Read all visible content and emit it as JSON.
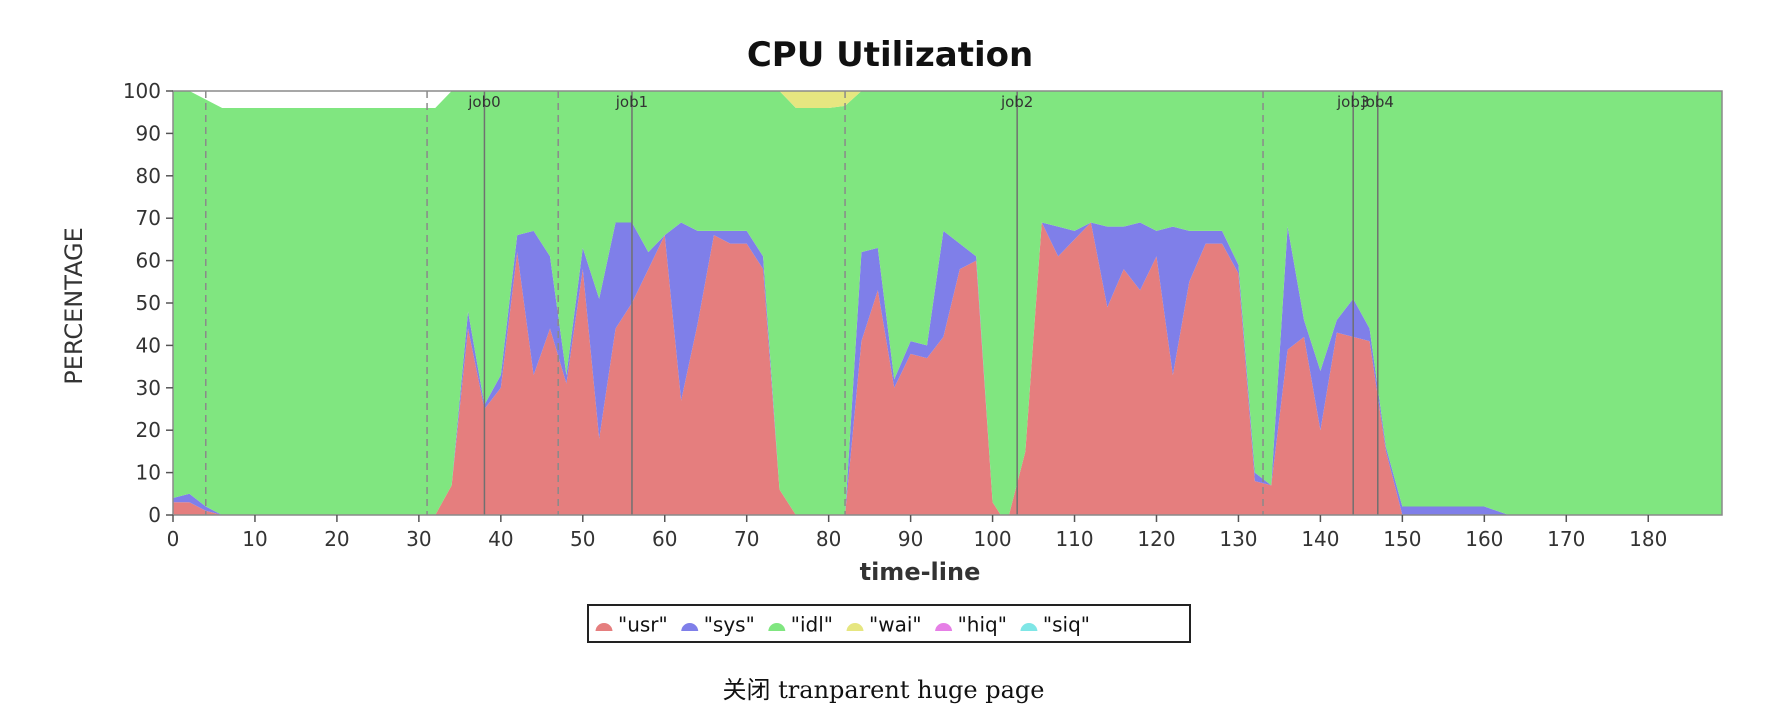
{
  "chart_data": {
    "type": "area",
    "title": "CPU Utilization",
    "xlabel": "time-line",
    "ylabel": "PERCENTAGE",
    "xlim": [
      0,
      189
    ],
    "ylim": [
      0,
      100
    ],
    "x_ticks": [
      0,
      10,
      20,
      30,
      40,
      50,
      60,
      70,
      80,
      90,
      100,
      110,
      120,
      130,
      140,
      150,
      160,
      170,
      180
    ],
    "y_ticks": [
      0,
      10,
      20,
      30,
      40,
      50,
      60,
      70,
      80,
      90,
      100
    ],
    "stacked": true,
    "legend_position": "bottom-center",
    "series": [
      {
        "name": "\"usr\"",
        "color": "#e57e7e",
        "points": [
          [
            0,
            3
          ],
          [
            2,
            3
          ],
          [
            4,
            1
          ],
          [
            6,
            0
          ],
          [
            32,
            0
          ],
          [
            34,
            7
          ],
          [
            36,
            44
          ],
          [
            38,
            25
          ],
          [
            40,
            30
          ],
          [
            42,
            62
          ],
          [
            44,
            33
          ],
          [
            46,
            44
          ],
          [
            48,
            31
          ],
          [
            50,
            58
          ],
          [
            52,
            18
          ],
          [
            54,
            44
          ],
          [
            56,
            50
          ],
          [
            58,
            58
          ],
          [
            60,
            66
          ],
          [
            62,
            27
          ],
          [
            64,
            45
          ],
          [
            66,
            66
          ],
          [
            68,
            64
          ],
          [
            70,
            64
          ],
          [
            72,
            58
          ],
          [
            74,
            6
          ],
          [
            76,
            0
          ],
          [
            82,
            0
          ],
          [
            84,
            41
          ],
          [
            86,
            53
          ],
          [
            88,
            30
          ],
          [
            90,
            38
          ],
          [
            92,
            37
          ],
          [
            94,
            42
          ],
          [
            96,
            58
          ],
          [
            98,
            60
          ],
          [
            100,
            3
          ],
          [
            101,
            0
          ],
          [
            102,
            0
          ],
          [
            104,
            15
          ],
          [
            106,
            69
          ],
          [
            108,
            61
          ],
          [
            110,
            65
          ],
          [
            112,
            69
          ],
          [
            114,
            49
          ],
          [
            116,
            58
          ],
          [
            118,
            53
          ],
          [
            120,
            61
          ],
          [
            122,
            33
          ],
          [
            124,
            55
          ],
          [
            126,
            64
          ],
          [
            128,
            64
          ],
          [
            130,
            57
          ],
          [
            132,
            8
          ],
          [
            134,
            7
          ],
          [
            136,
            39
          ],
          [
            138,
            42
          ],
          [
            140,
            20
          ],
          [
            142,
            43
          ],
          [
            144,
            42
          ],
          [
            146,
            41
          ],
          [
            148,
            15
          ],
          [
            150,
            0
          ],
          [
            189,
            0
          ]
        ]
      },
      {
        "name": "\"sys\"",
        "color": "#7f7fe9",
        "points": [
          [
            0,
            1
          ],
          [
            2,
            2
          ],
          [
            4,
            1
          ],
          [
            6,
            0
          ],
          [
            32,
            0
          ],
          [
            34,
            0
          ],
          [
            36,
            4
          ],
          [
            38,
            1
          ],
          [
            40,
            3
          ],
          [
            42,
            4
          ],
          [
            44,
            34
          ],
          [
            46,
            17
          ],
          [
            48,
            2
          ],
          [
            50,
            5
          ],
          [
            52,
            33
          ],
          [
            54,
            25
          ],
          [
            56,
            19
          ],
          [
            58,
            4
          ],
          [
            60,
            0
          ],
          [
            62,
            42
          ],
          [
            64,
            22
          ],
          [
            66,
            1
          ],
          [
            68,
            3
          ],
          [
            70,
            3
          ],
          [
            72,
            3
          ],
          [
            74,
            0
          ],
          [
            76,
            0
          ],
          [
            82,
            0
          ],
          [
            84,
            21
          ],
          [
            86,
            10
          ],
          [
            88,
            2
          ],
          [
            90,
            3
          ],
          [
            92,
            3
          ],
          [
            94,
            25
          ],
          [
            96,
            6
          ],
          [
            98,
            1
          ],
          [
            100,
            0
          ],
          [
            101,
            0
          ],
          [
            102,
            0
          ],
          [
            104,
            0
          ],
          [
            106,
            0
          ],
          [
            108,
            7
          ],
          [
            110,
            2
          ],
          [
            112,
            0
          ],
          [
            114,
            19
          ],
          [
            116,
            10
          ],
          [
            118,
            16
          ],
          [
            120,
            6
          ],
          [
            122,
            35
          ],
          [
            124,
            12
          ],
          [
            126,
            3
          ],
          [
            128,
            3
          ],
          [
            130,
            2
          ],
          [
            132,
            2
          ],
          [
            134,
            0
          ],
          [
            136,
            29
          ],
          [
            138,
            4
          ],
          [
            140,
            14
          ],
          [
            142,
            3
          ],
          [
            144,
            9
          ],
          [
            146,
            3
          ],
          [
            148,
            1
          ],
          [
            150,
            2
          ],
          [
            152,
            2
          ],
          [
            160,
            2
          ],
          [
            163,
            0
          ],
          [
            189,
            0
          ]
        ]
      },
      {
        "name": "\"idl\"",
        "color": "#80e680",
        "points": [
          [
            0,
            96
          ],
          [
            70,
            96
          ],
          [
            72,
            100
          ],
          [
            74,
            99
          ],
          [
            76,
            96
          ],
          [
            80,
            96
          ],
          [
            84,
            97
          ],
          [
            88,
            97
          ],
          [
            92,
            98
          ],
          [
            94,
            97
          ],
          [
            96,
            99
          ],
          [
            98,
            100
          ],
          [
            129,
            100
          ],
          [
            132,
            97
          ],
          [
            134,
            94
          ],
          [
            136,
            97
          ],
          [
            138,
            98
          ],
          [
            140,
            93
          ],
          [
            142,
            96
          ],
          [
            144,
            97
          ],
          [
            146,
            99
          ],
          [
            148,
            100
          ],
          [
            189,
            100
          ]
        ]
      },
      {
        "name": "\"wai\"",
        "color": "#e6e680",
        "points": [
          [
            0,
            0
          ],
          [
            70,
            0
          ],
          [
            72,
            0
          ],
          [
            74,
            1
          ],
          [
            76,
            4
          ],
          [
            80,
            4
          ],
          [
            84,
            3
          ],
          [
            88,
            3
          ],
          [
            92,
            2
          ],
          [
            94,
            3
          ],
          [
            96,
            1
          ],
          [
            98,
            0
          ],
          [
            129,
            0
          ],
          [
            132,
            3
          ],
          [
            134,
            6
          ],
          [
            136,
            3
          ],
          [
            138,
            2
          ],
          [
            140,
            7
          ],
          [
            142,
            4
          ],
          [
            144,
            3
          ],
          [
            146,
            1
          ],
          [
            148,
            0
          ],
          [
            189,
            0
          ]
        ]
      },
      {
        "name": "\"hiq\"",
        "color": "#e67fe6",
        "points": [
          [
            0,
            0
          ],
          [
            189,
            0
          ]
        ]
      },
      {
        "name": "\"siq\"",
        "color": "#7fe6e6",
        "points": [
          [
            0,
            0
          ],
          [
            189,
            0
          ]
        ]
      }
    ],
    "dashed_markers": [
      4,
      31,
      47,
      82,
      133
    ],
    "job_markers": [
      {
        "x": 38,
        "label": "job0"
      },
      {
        "x": 56,
        "label": "job1"
      },
      {
        "x": 103,
        "label": "job2"
      },
      {
        "x": 144,
        "label": "job3"
      },
      {
        "x": 147,
        "label": "job4"
      }
    ]
  },
  "caption": "关闭 tranparent huge page"
}
